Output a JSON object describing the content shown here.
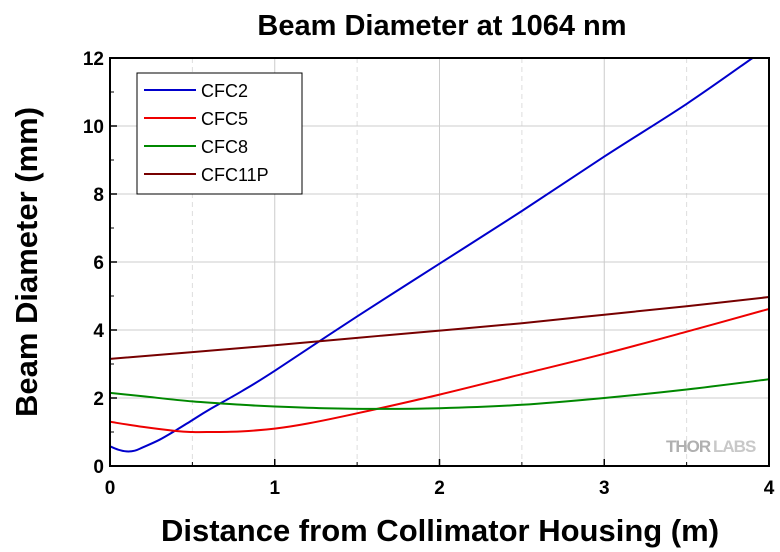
{
  "chart_data": {
    "type": "line",
    "title": "Beam Diameter at 1064 nm",
    "xlabel": "Distance from Collimator Housing (m)",
    "ylabel": "Beam Diameter (mm)",
    "xlim": [
      0,
      4
    ],
    "ylim": [
      0,
      12
    ],
    "xticks": [
      "0",
      "1",
      "2",
      "3",
      "4"
    ],
    "yticks": [
      "0",
      "2",
      "4",
      "6",
      "8",
      "10",
      "12"
    ],
    "grid": true,
    "legend_position": "top-left",
    "series": [
      {
        "name": "CFC2",
        "color": "#0000cc",
        "x": [
          0,
          0.05,
          0.1,
          0.15,
          0.2,
          0.3,
          0.4,
          0.5,
          0.6,
          0.8,
          1.0,
          1.5,
          2.0,
          2.5,
          3.0,
          3.5,
          3.9
        ],
        "y": [
          0.58,
          0.48,
          0.43,
          0.45,
          0.55,
          0.77,
          1.05,
          1.35,
          1.65,
          2.2,
          2.8,
          4.4,
          5.95,
          7.5,
          9.1,
          10.65,
          12.0
        ]
      },
      {
        "name": "CFC5",
        "color": "#ee0000",
        "x": [
          0,
          0.2,
          0.4,
          0.5,
          0.6,
          0.8,
          1.0,
          1.2,
          1.5,
          2.0,
          2.5,
          3.0,
          3.5,
          4.0
        ],
        "y": [
          1.3,
          1.15,
          1.03,
          1.0,
          1.0,
          1.02,
          1.1,
          1.25,
          1.55,
          2.1,
          2.7,
          3.3,
          3.95,
          4.62
        ]
      },
      {
        "name": "CFC8",
        "color": "#008800",
        "x": [
          0,
          0.2,
          0.5,
          0.8,
          1.0,
          1.3,
          1.6,
          2.0,
          2.5,
          3.0,
          3.5,
          4.0
        ],
        "y": [
          2.15,
          2.05,
          1.9,
          1.8,
          1.75,
          1.7,
          1.68,
          1.7,
          1.8,
          2.0,
          2.25,
          2.55
        ]
      },
      {
        "name": "CFC11P",
        "color": "#770000",
        "x": [
          0,
          0.5,
          1.0,
          1.5,
          2.0,
          2.5,
          3.0,
          3.5,
          4.0
        ],
        "y": [
          3.15,
          3.35,
          3.55,
          3.77,
          3.98,
          4.2,
          4.45,
          4.7,
          4.97
        ]
      }
    ]
  },
  "watermark": {
    "part1": "THOR",
    "part2": "LABS"
  }
}
